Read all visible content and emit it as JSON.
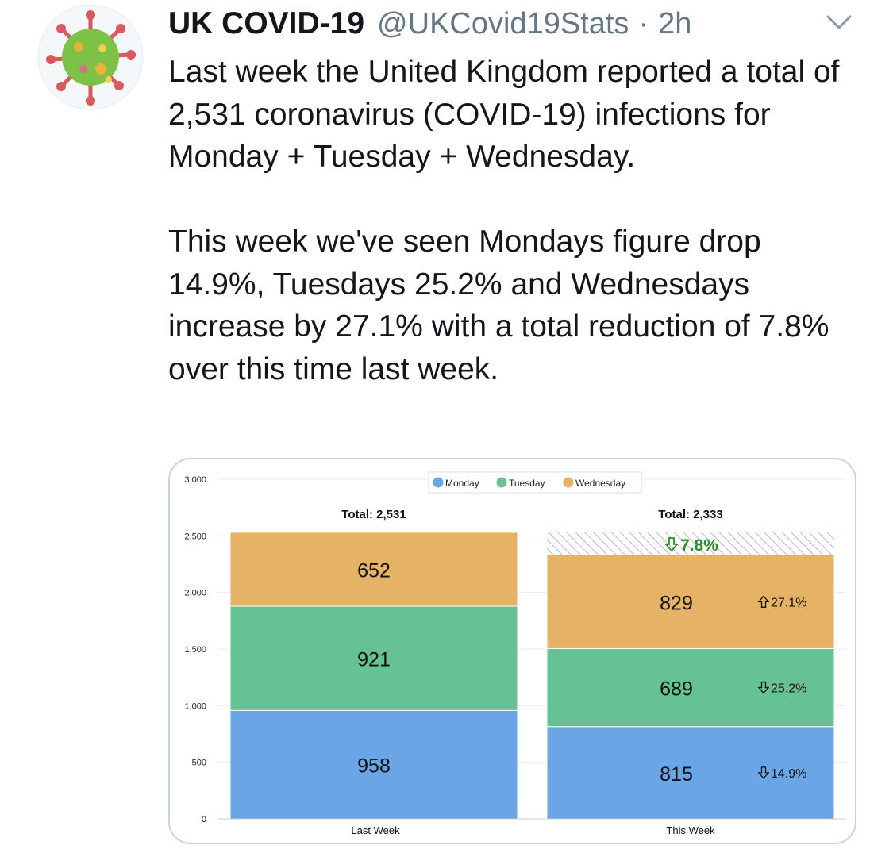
{
  "tweet": {
    "author_name": "UK COVID-19",
    "handle": "@UKCovid19Stats",
    "separator": "·",
    "time": "2h",
    "paragraphs": [
      "Last week the United Kingdom reported a total of 2,531 coronavirus (COVID-19) infections for Monday + Tuesday + Wednesday.",
      "This week we've seen Mondays figure drop 14.9%, Tuesdays 25.2% and Wednesdays increase by 27.1% with a total reduction of 7.8% over this time last week."
    ]
  },
  "icons": {
    "avatar": "virus-avatar-icon",
    "menu": "chevron-down-icon",
    "down_arrow": "outline-down-arrow-icon",
    "up_arrow": "outline-up-arrow-icon"
  },
  "chart_data": {
    "type": "bar",
    "stacked": true,
    "categories": [
      "Last Week",
      "This Week"
    ],
    "series": [
      {
        "name": "Monday",
        "values": [
          958,
          815
        ],
        "color": "#6aa6e6",
        "changes": [
          null,
          "14.9%"
        ],
        "directions": [
          null,
          "down"
        ]
      },
      {
        "name": "Tuesday",
        "values": [
          921,
          689
        ],
        "color": "#66c193",
        "changes": [
          null,
          "25.2%"
        ],
        "directions": [
          null,
          "down"
        ]
      },
      {
        "name": "Wednesday",
        "values": [
          652,
          829
        ],
        "color": "#e6b265",
        "changes": [
          null,
          "27.1%"
        ],
        "directions": [
          null,
          "up"
        ]
      }
    ],
    "totals": [
      "Total: 2,531",
      "Total: 2,333"
    ],
    "total_change": "7.8%",
    "total_change_direction": "down",
    "y_ticks": [
      "0",
      "500",
      "1,000",
      "1,500",
      "2,000",
      "2,500",
      "3,000"
    ],
    "y_tick_values": [
      0,
      500,
      1000,
      1500,
      2000,
      2500,
      3000
    ],
    "ylim": [
      0,
      3000
    ],
    "legend_position": "top-center",
    "grid": true,
    "colors": {
      "change_green": "#2e8b2e",
      "hatch": "#bbbbbb"
    }
  }
}
